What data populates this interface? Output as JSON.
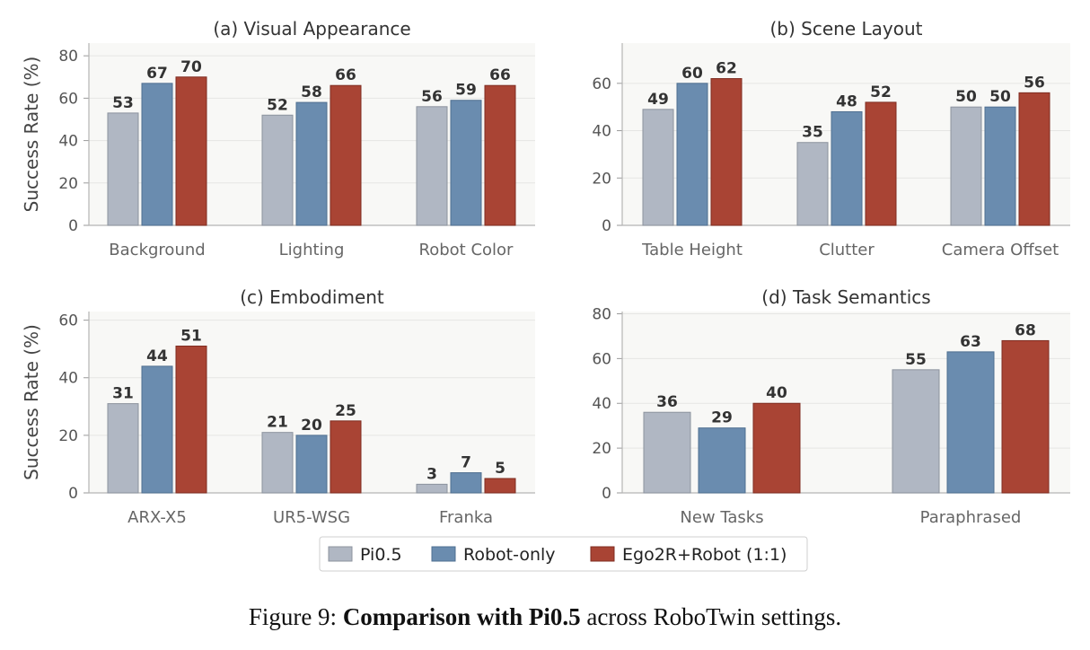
{
  "legend": [
    {
      "name": "Pi0.5",
      "color": "#b0b7c3"
    },
    {
      "name": "Robot-only",
      "color": "#6a8caf"
    },
    {
      "name": "Ego2R+Robot (1:1)",
      "color": "#a94434"
    }
  ],
  "series_colors": {
    "fill": [
      "#b0b7c3",
      "#6a8caf",
      "#a94434"
    ],
    "edge": [
      "#8c939e",
      "#4f6f90",
      "#7f2d21"
    ]
  },
  "caption": {
    "prefix": "Figure 9: ",
    "bold": "Comparison with Pi0.5",
    "suffix": " across RoboTwin settings."
  },
  "chart_data": [
    {
      "type": "bar",
      "title": "(a) Visual Appearance",
      "ylabel": "Success Rate (%)",
      "ylim": [
        0,
        86
      ],
      "yticks": [
        0,
        20,
        40,
        60,
        80
      ],
      "categories": [
        "Background",
        "Lighting",
        "Robot Color"
      ],
      "series": [
        {
          "name": "Pi0.5",
          "values": [
            53,
            52,
            56
          ]
        },
        {
          "name": "Robot-only",
          "values": [
            67,
            58,
            59
          ]
        },
        {
          "name": "Ego2R+Robot (1:1)",
          "values": [
            70,
            66,
            66
          ]
        }
      ],
      "grid": true
    },
    {
      "type": "bar",
      "title": "(b) Scene Layout",
      "ylabel": "",
      "ylim": [
        0,
        77
      ],
      "yticks": [
        0,
        20,
        40,
        60
      ],
      "categories": [
        "Table Height",
        "Clutter",
        "Camera Offset"
      ],
      "series": [
        {
          "name": "Pi0.5",
          "values": [
            49,
            35,
            50
          ]
        },
        {
          "name": "Robot-only",
          "values": [
            60,
            48,
            50
          ]
        },
        {
          "name": "Ego2R+Robot (1:1)",
          "values": [
            62,
            52,
            56
          ]
        }
      ],
      "grid": true
    },
    {
      "type": "bar",
      "title": "(c) Embodiment",
      "ylabel": "Success Rate (%)",
      "ylim": [
        0,
        63
      ],
      "yticks": [
        0,
        20,
        40,
        60
      ],
      "categories": [
        "ARX-X5",
        "UR5-WSG",
        "Franka"
      ],
      "series": [
        {
          "name": "Pi0.5",
          "values": [
            31,
            21,
            3
          ]
        },
        {
          "name": "Robot-only",
          "values": [
            44,
            20,
            7
          ]
        },
        {
          "name": "Ego2R+Robot (1:1)",
          "values": [
            51,
            25,
            5
          ]
        }
      ],
      "grid": true
    },
    {
      "type": "bar",
      "title": "(d) Task Semantics",
      "ylabel": "",
      "ylim": [
        0,
        81
      ],
      "yticks": [
        0,
        20,
        40,
        60,
        80
      ],
      "categories": [
        "New Tasks",
        "Paraphrased"
      ],
      "series": [
        {
          "name": "Pi0.5",
          "values": [
            36,
            55
          ]
        },
        {
          "name": "Robot-only",
          "values": [
            29,
            63
          ]
        },
        {
          "name": "Ego2R+Robot (1:1)",
          "values": [
            40,
            68
          ]
        }
      ],
      "grid": true
    }
  ]
}
